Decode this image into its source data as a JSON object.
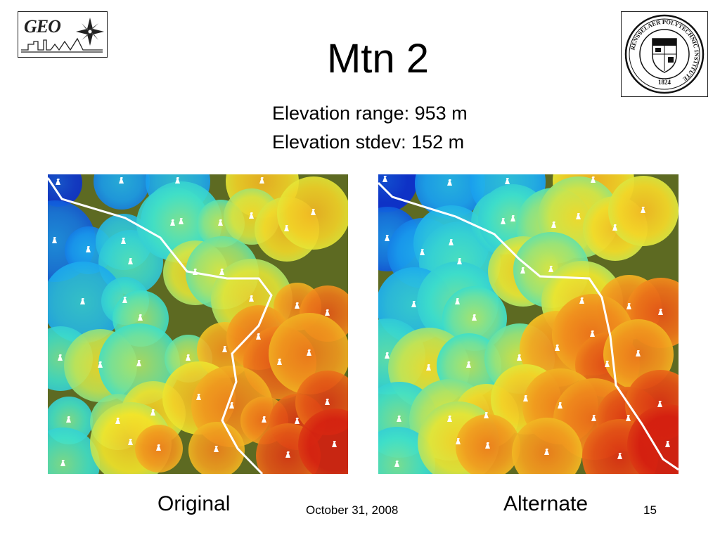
{
  "slide": {
    "title": "Mtn 2",
    "stats": {
      "range": "Elevation range: 953 m",
      "stdev": "Elevation stdev: 152 m"
    },
    "captions": {
      "original": "Original",
      "alternate": "Alternate"
    },
    "footer": {
      "date": "October 31, 2008",
      "page_number": "15"
    }
  },
  "logos": {
    "geo": "GEO",
    "rpi_seal_text": "RENSSELAER POLYTECHNIC INSTITUTE",
    "rpi_year": "1824"
  },
  "colors": {
    "terrain_base": "#5d6a22",
    "coverage_low": "#0a3cd8",
    "coverage_mid": "#f2e52a",
    "coverage_high": "#d41e10",
    "road": "#ffffff"
  }
}
